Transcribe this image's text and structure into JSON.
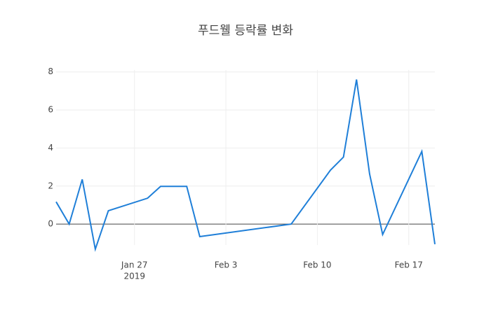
{
  "chart_data": {
    "type": "line",
    "title": "푸드웰 등락률 변화",
    "x": [
      "2019-01-21",
      "2019-01-22",
      "2019-01-23",
      "2019-01-24",
      "2019-01-25",
      "2019-01-28",
      "2019-01-29",
      "2019-01-31",
      "2019-02-01",
      "2019-02-08",
      "2019-02-11",
      "2019-02-12",
      "2019-02-13",
      "2019-02-14",
      "2019-02-15",
      "2019-02-18",
      "2019-02-19"
    ],
    "series": [
      {
        "color": "#1f7fd8",
        "values": [
          1.17,
          0,
          2.35,
          -1.32,
          0.7,
          1.36,
          1.98,
          1.98,
          -0.66,
          0,
          2.83,
          3.52,
          7.6,
          2.64,
          -0.55,
          3.82,
          -1.06
        ]
      }
    ],
    "xlim": [
      "2019-01-21",
      "2019-02-19"
    ],
    "xticks": [
      {
        "value": "2019-01-27",
        "label": "Jan 27"
      },
      {
        "value": "2019-02-03",
        "label": "Feb 3"
      },
      {
        "value": "2019-02-10",
        "label": "Feb 10"
      },
      {
        "value": "2019-02-17",
        "label": "Feb 17"
      }
    ],
    "xtick_year": "2019",
    "ylim": [
      -1.1,
      8.1
    ],
    "yticks": [
      0,
      2,
      4,
      6,
      8
    ],
    "grid": true
  }
}
